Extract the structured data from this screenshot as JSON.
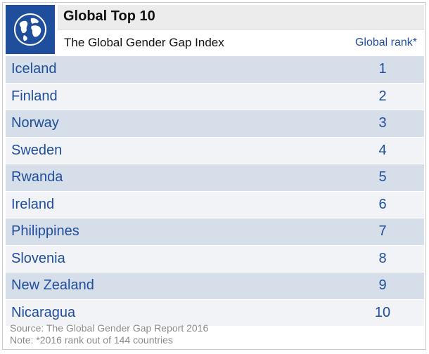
{
  "header": {
    "title": "Global Top 10",
    "subtitle": "The Global Gender Gap Index",
    "rank_header": "Global rank*"
  },
  "icon": {
    "name": "globe-icon",
    "bg_color": "#1f4e9c"
  },
  "colors": {
    "accent": "#1f4e9c",
    "row_odd": "#d6deea",
    "row_even": "#f1f3f6",
    "footer_text": "#8a8a8a"
  },
  "chart_data": {
    "type": "table",
    "title": "Global Top 10",
    "subtitle": "The Global Gender Gap Index",
    "columns": [
      "",
      "Global rank*"
    ],
    "rows": [
      {
        "country": "Iceland",
        "rank": 1
      },
      {
        "country": "Finland",
        "rank": 2
      },
      {
        "country": "Norway",
        "rank": 3
      },
      {
        "country": "Sweden",
        "rank": 4
      },
      {
        "country": "Rwanda",
        "rank": 5
      },
      {
        "country": "Ireland",
        "rank": 6
      },
      {
        "country": "Philippines",
        "rank": 7
      },
      {
        "country": "Slovenia",
        "rank": 8
      },
      {
        "country": "New Zealand",
        "rank": 9
      },
      {
        "country": "Nicaragua",
        "rank": 10
      }
    ]
  },
  "footer": {
    "source": "Source: The Global Gender Gap Report 2016",
    "note": "Note: *2016 rank out of 144 countries"
  }
}
